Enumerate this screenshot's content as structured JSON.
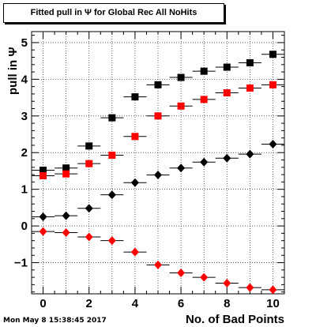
{
  "title": "Fitted pull in  Ψ  for Global Rec All NoHits",
  "footer_timestamp": "Mon May  8 15:38:45 2017",
  "chart_data": {
    "type": "scatter",
    "xlabel": "No. of Bad Points",
    "ylabel": "pull in  Ψ",
    "xlim": [
      -0.5,
      10.5
    ],
    "ylim": [
      -1.85,
      5.3
    ],
    "x_ticks": [
      0,
      2,
      4,
      6,
      8,
      10
    ],
    "y_ticks": [
      -1,
      0,
      1,
      2,
      3,
      4,
      5
    ],
    "x_error": 0.5,
    "grid": true,
    "series": [
      {
        "marker": "square",
        "color": "#000000",
        "x": [
          0,
          1,
          2,
          3,
          4,
          5,
          6,
          7,
          8,
          9,
          10
        ],
        "values": [
          1.52,
          1.58,
          2.18,
          2.95,
          3.52,
          3.85,
          4.05,
          4.22,
          4.33,
          4.45,
          4.68
        ]
      },
      {
        "marker": "square",
        "color": "#ff0000",
        "x": [
          0,
          1,
          2,
          3,
          4,
          5,
          6,
          7,
          8,
          9,
          10
        ],
        "values": [
          1.37,
          1.42,
          1.7,
          1.93,
          2.44,
          3.0,
          3.27,
          3.45,
          3.63,
          3.76,
          3.85
        ]
      },
      {
        "marker": "diamond",
        "color": "#000000",
        "x": [
          0,
          1,
          2,
          3,
          4,
          5,
          6,
          7,
          8,
          9,
          10
        ],
        "values": [
          0.25,
          0.28,
          0.48,
          0.85,
          1.18,
          1.39,
          1.58,
          1.74,
          1.85,
          1.96,
          2.23
        ]
      },
      {
        "marker": "diamond",
        "color": "#ff0000",
        "x": [
          0,
          1,
          2,
          3,
          4,
          5,
          6,
          7,
          8,
          9,
          10
        ],
        "values": [
          -0.15,
          -0.18,
          -0.3,
          -0.4,
          -0.71,
          -1.06,
          -1.28,
          -1.4,
          -1.56,
          -1.68,
          -1.74
        ]
      }
    ]
  }
}
